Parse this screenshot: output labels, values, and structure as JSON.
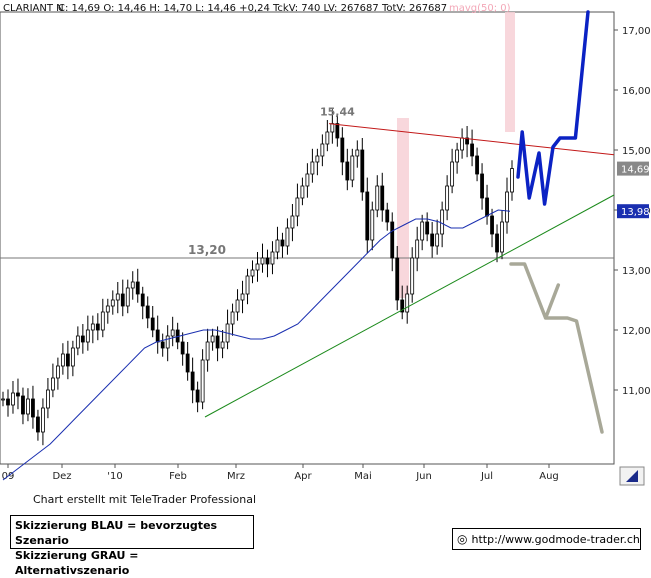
{
  "header": {
    "symbol": "CLARIANT N",
    "quote": "C: 14,69 O: 14,46 H: 14,70 L: 14,46 +0,24 TckV: 740 LV: 267687 TotV: 267687",
    "indicator": "mavg(50; 0)",
    "indicator_color": "#f3a8b8"
  },
  "credit": "Chart erstellt mit TeleTrader Professional",
  "legend": {
    "line1": "Skizzierung BLAU = bevorzugtes Szenario",
    "line2": "Skizzierung GRAU = Alternativszenario"
  },
  "website": "http://www.godmode-trader.ch",
  "chart_data": {
    "type": "candlestick",
    "instrument": "CLARIANT N",
    "y_axis": {
      "range": [
        10.0,
        17.4
      ],
      "side": "right",
      "ticks": [
        "11,00",
        "12,00",
        "13,00",
        "14,00",
        "15,00",
        "16,00",
        "17,00"
      ]
    },
    "x_axis": {
      "ticks": [
        "09",
        "Dez",
        "'10",
        "Feb",
        "Mrz",
        "Apr",
        "Mai",
        "Jun",
        "Jul",
        "Aug"
      ]
    },
    "grid": false,
    "last_price_label": "14,69",
    "ma_value_label": "13,98",
    "annotations": {
      "high_label": "15,44",
      "support_label": "13,20"
    },
    "horizontal_support": 13.2,
    "resistance_line": [
      [
        0,
        15.44
      ],
      [
        1,
        14.92
      ]
    ],
    "uptrend_line": [
      [
        0,
        10.55
      ],
      [
        1,
        14.25
      ]
    ],
    "close_series": [
      10.85,
      10.75,
      10.95,
      10.9,
      10.6,
      10.85,
      10.55,
      10.3,
      10.7,
      11.0,
      11.2,
      11.4,
      11.6,
      11.4,
      11.7,
      11.9,
      11.8,
      12.0,
      12.1,
      12.0,
      12.3,
      12.4,
      12.5,
      12.6,
      12.4,
      12.7,
      12.8,
      12.6,
      12.4,
      12.2,
      12.0,
      11.8,
      11.7,
      11.9,
      12.0,
      11.8,
      11.6,
      11.3,
      11.0,
      10.8,
      11.5,
      11.8,
      11.9,
      11.7,
      11.8,
      12.1,
      12.3,
      12.5,
      12.6,
      12.9,
      13.0,
      13.1,
      13.2,
      13.1,
      13.3,
      13.5,
      13.4,
      13.7,
      13.9,
      14.2,
      14.4,
      14.6,
      14.8,
      14.9,
      15.1,
      15.3,
      15.44,
      15.2,
      14.8,
      14.5,
      14.9,
      15.0,
      14.3,
      13.5,
      14.0,
      14.4,
      14.0,
      13.8,
      13.2,
      12.5,
      12.3,
      12.6,
      13.2,
      13.5,
      13.8,
      13.6,
      13.4,
      13.6,
      14.0,
      14.4,
      14.8,
      15.0,
      15.2,
      15.1,
      14.9,
      14.6,
      14.2,
      13.9,
      13.6,
      13.3,
      13.8,
      14.3,
      14.69
    ],
    "ma_series": [
      9.5,
      9.65,
      9.8,
      9.95,
      10.1,
      10.3,
      10.5,
      10.7,
      10.9,
      11.1,
      11.3,
      11.5,
      11.7,
      11.8,
      11.85,
      11.9,
      11.95,
      12.0,
      12.0,
      11.95,
      11.9,
      11.85,
      11.85,
      11.9,
      12.0,
      12.1,
      12.3,
      12.5,
      12.7,
      12.9,
      13.1,
      13.3,
      13.5,
      13.65,
      13.75,
      13.85,
      13.85,
      13.8,
      13.7,
      13.7,
      13.8,
      13.9,
      14.0,
      13.98
    ],
    "scenario_blue": {
      "color": "#0b22c4",
      "points": [
        [
          0,
          14.55
        ],
        [
          0.06,
          15.3
        ],
        [
          0.16,
          14.2
        ],
        [
          0.3,
          14.95
        ],
        [
          0.38,
          14.1
        ],
        [
          0.5,
          15.05
        ],
        [
          0.6,
          15.2
        ],
        [
          0.82,
          15.2
        ],
        [
          1.0,
          17.3
        ]
      ]
    },
    "scenario_gray": {
      "color": "#a8a898",
      "points": [
        [
          0,
          13.1
        ],
        [
          0.15,
          13.1
        ],
        [
          0.38,
          12.2
        ],
        [
          0.52,
          12.75
        ],
        [
          0.38,
          12.2
        ],
        [
          0.62,
          12.2
        ],
        [
          0.72,
          12.15
        ],
        [
          1.0,
          10.3
        ]
      ]
    }
  }
}
